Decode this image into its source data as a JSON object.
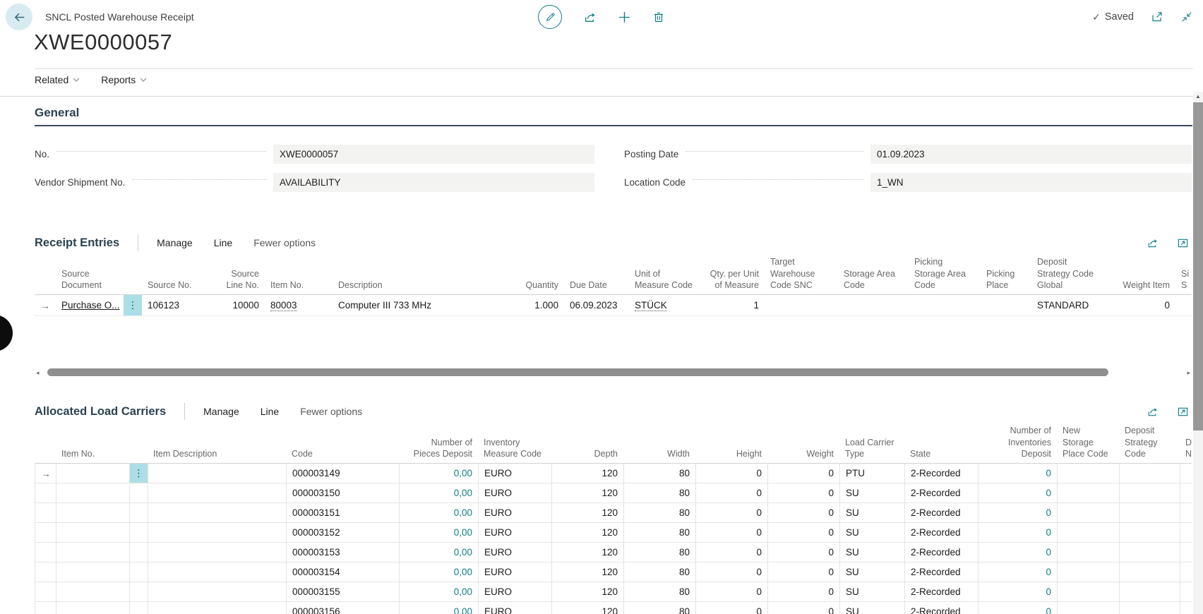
{
  "colors": {
    "accent": "#0e7d87",
    "section_underline": "#3b4a5f",
    "field_bg": "#f3f3f2",
    "row_menu_bg": "#abdfe5"
  },
  "icon_names": {
    "back": "back-arrow",
    "edit": "edit-pencil",
    "share": "share-arrow",
    "new": "plus",
    "delete": "trash-can",
    "saved_check": "checkmark",
    "open_window": "open-in-new-window",
    "collapse": "collapse-arrows",
    "menu_chevron": "chevron-down",
    "grid_share": "share-arrow",
    "grid_focus": "focus-mode-expand",
    "row_marker": "right-arrow",
    "row_menu": "vertical-ellipsis"
  },
  "header": {
    "app_title": "SNCL Posted Warehouse Receipt",
    "page_title": "XWE0000057",
    "saved_label": "Saved"
  },
  "menubar": {
    "items": [
      {
        "label": "Related"
      },
      {
        "label": "Reports"
      }
    ]
  },
  "general": {
    "title": "General",
    "fields": [
      {
        "label": "No.",
        "value": "XWE0000057"
      },
      {
        "label": "Vendor Shipment No.",
        "value": "AVAILABILITY"
      },
      {
        "label": "Posting Date",
        "value": "01.09.2023"
      },
      {
        "label": "Location Code",
        "value": "1_WN"
      }
    ]
  },
  "receipt_entries": {
    "title": "Receipt Entries",
    "toolbar": [
      "Manage",
      "Line",
      "Fewer options"
    ],
    "columns": [
      "Source Document",
      "Source No.",
      "Source Line No.",
      "Item No.",
      "Description",
      "Quantity",
      "Due Date",
      "Unit of Measure Code",
      "Qty. per Unit of Measure",
      "Target Warehouse Code SNC",
      "Storage Area Code",
      "Picking Storage Area Code",
      "Picking Place",
      "Deposit Strategy Code Global",
      "Weight Item",
      "Si S"
    ],
    "rows": [
      {
        "selected": true,
        "source_document": "Purchase O...",
        "source_no": "106123",
        "source_line_no": "10000",
        "item_no": "80003",
        "description": "Computer III 733 MHz",
        "quantity": "1.000",
        "due_date": "06.09.2023",
        "unit_of_measure_code": "STÜCK",
        "qty_per_unit_of_measure": "1",
        "target_warehouse_code_snc": "",
        "storage_area_code": "",
        "picking_storage_area_code": "",
        "picking_place": "",
        "deposit_strategy_code_global": "STANDARD",
        "weight_item": "0",
        "si": ""
      }
    ]
  },
  "allocated_load_carriers": {
    "title": "Allocated Load Carriers",
    "toolbar": [
      "Manage",
      "Line",
      "Fewer options"
    ],
    "columns": [
      "Item No.",
      "Item Description",
      "Code",
      "Number of Pieces Deposit",
      "Inventory Measure Code",
      "Depth",
      "Width",
      "Height",
      "Weight",
      "Load Carrier Type",
      "State",
      "Number of Inventories Deposit",
      "New Storage Place Code",
      "Deposit Strategy Code",
      "D N"
    ],
    "rows": [
      {
        "selected": true,
        "item_no": "",
        "item_description": "",
        "code": "000003149",
        "number_of_pieces_deposit": "0,00",
        "inventory_measure_code": "EURO",
        "depth": "120",
        "width": "80",
        "height": "0",
        "weight": "0",
        "load_carrier_type": "PTU",
        "state": "2-Recorded",
        "number_of_inventories_deposit": "0",
        "new_storage_place_code": "",
        "deposit_strategy_code": "",
        "d_n": ""
      },
      {
        "selected": false,
        "item_no": "",
        "item_description": "",
        "code": "000003150",
        "number_of_pieces_deposit": "0,00",
        "inventory_measure_code": "EURO",
        "depth": "120",
        "width": "80",
        "height": "0",
        "weight": "0",
        "load_carrier_type": "SU",
        "state": "2-Recorded",
        "number_of_inventories_deposit": "0",
        "new_storage_place_code": "",
        "deposit_strategy_code": "",
        "d_n": ""
      },
      {
        "selected": false,
        "item_no": "",
        "item_description": "",
        "code": "000003151",
        "number_of_pieces_deposit": "0,00",
        "inventory_measure_code": "EURO",
        "depth": "120",
        "width": "80",
        "height": "0",
        "weight": "0",
        "load_carrier_type": "SU",
        "state": "2-Recorded",
        "number_of_inventories_deposit": "0",
        "new_storage_place_code": "",
        "deposit_strategy_code": "",
        "d_n": ""
      },
      {
        "selected": false,
        "item_no": "",
        "item_description": "",
        "code": "000003152",
        "number_of_pieces_deposit": "0,00",
        "inventory_measure_code": "EURO",
        "depth": "120",
        "width": "80",
        "height": "0",
        "weight": "0",
        "load_carrier_type": "SU",
        "state": "2-Recorded",
        "number_of_inventories_deposit": "0",
        "new_storage_place_code": "",
        "deposit_strategy_code": "",
        "d_n": ""
      },
      {
        "selected": false,
        "item_no": "",
        "item_description": "",
        "code": "000003153",
        "number_of_pieces_deposit": "0,00",
        "inventory_measure_code": "EURO",
        "depth": "120",
        "width": "80",
        "height": "0",
        "weight": "0",
        "load_carrier_type": "SU",
        "state": "2-Recorded",
        "number_of_inventories_deposit": "0",
        "new_storage_place_code": "",
        "deposit_strategy_code": "",
        "d_n": ""
      },
      {
        "selected": false,
        "item_no": "",
        "item_description": "",
        "code": "000003154",
        "number_of_pieces_deposit": "0,00",
        "inventory_measure_code": "EURO",
        "depth": "120",
        "width": "80",
        "height": "0",
        "weight": "0",
        "load_carrier_type": "SU",
        "state": "2-Recorded",
        "number_of_inventories_deposit": "0",
        "new_storage_place_code": "",
        "deposit_strategy_code": "",
        "d_n": ""
      },
      {
        "selected": false,
        "item_no": "",
        "item_description": "",
        "code": "000003155",
        "number_of_pieces_deposit": "0,00",
        "inventory_measure_code": "EURO",
        "depth": "120",
        "width": "80",
        "height": "0",
        "weight": "0",
        "load_carrier_type": "SU",
        "state": "2-Recorded",
        "number_of_inventories_deposit": "0",
        "new_storage_place_code": "",
        "deposit_strategy_code": "",
        "d_n": ""
      },
      {
        "selected": false,
        "item_no": "",
        "item_description": "",
        "code": "000003156",
        "number_of_pieces_deposit": "0,00",
        "inventory_measure_code": "EURO",
        "depth": "120",
        "width": "80",
        "height": "0",
        "weight": "0",
        "load_carrier_type": "SU",
        "state": "2-Recorded",
        "number_of_inventories_deposit": "0",
        "new_storage_place_code": "",
        "deposit_strategy_code": "",
        "d_n": ""
      }
    ]
  }
}
